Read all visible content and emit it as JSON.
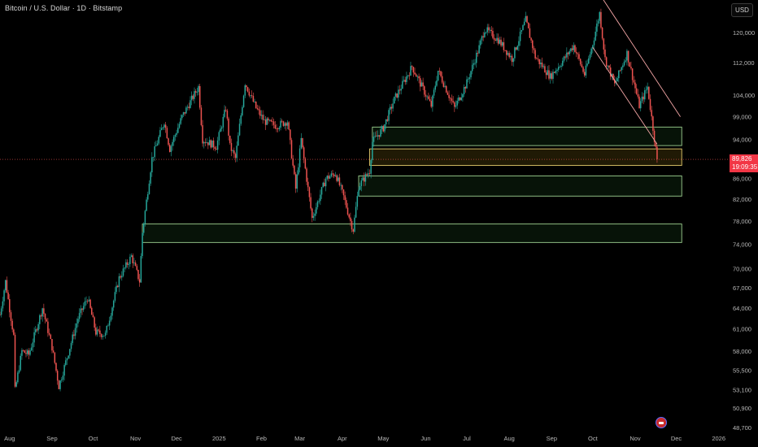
{
  "header": {
    "title": "Bitcoin / U.S. Dollar · 1D · Bitstamp"
  },
  "currency_button": "USD",
  "last_price": {
    "value": "89,826",
    "countdown": "19:09:35"
  },
  "colors": {
    "up": "#26a69a",
    "down": "#ef5350",
    "zone_fill": "#0f2a12",
    "zone_border": "#9ccf8f",
    "active_zone_fill": "#3a2f0a",
    "active_zone_border": "#e2c96a",
    "trendline": "#f4a6a6",
    "price_tag": "#f23645"
  },
  "icons": {
    "event": "flag-event-icon"
  },
  "chart_data": {
    "type": "candlestick",
    "x_axis": {
      "labels": [
        "Aug",
        "Sep",
        "Oct",
        "Nov",
        "Dec",
        "2025",
        "Feb",
        "Mar",
        "Apr",
        "May",
        "Jun",
        "Jul",
        "Aug",
        "Sep",
        "Oct",
        "Nov",
        "Dec",
        "2026"
      ]
    },
    "y_axis": {
      "scale": "log",
      "tick_labels": [
        "120,000",
        "112,000",
        "104,000",
        "99,000",
        "94,000",
        "86,000",
        "82,000",
        "78,000",
        "74,000",
        "70,000",
        "67,000",
        "64,000",
        "61,000",
        "58,000",
        "55,500",
        "53,100",
        "50,900",
        "48,700"
      ],
      "range": [
        48000,
        133000
      ]
    },
    "path": [
      [
        "2024-07-25",
        63000
      ],
      [
        "2024-07-29",
        68000
      ],
      [
        "2024-08-04",
        60000
      ],
      [
        "2024-08-05",
        53000
      ],
      [
        "2024-08-10",
        58000
      ],
      [
        "2024-08-15",
        57500
      ],
      [
        "2024-08-25",
        64000
      ],
      [
        "2024-09-01",
        58500
      ],
      [
        "2024-09-06",
        53500
      ],
      [
        "2024-09-20",
        62500
      ],
      [
        "2024-09-27",
        65500
      ],
      [
        "2024-10-03",
        60500
      ],
      [
        "2024-10-10",
        60200
      ],
      [
        "2024-10-20",
        68500
      ],
      [
        "2024-10-29",
        72000
      ],
      [
        "2024-11-04",
        68000
      ],
      [
        "2024-11-06",
        76000
      ],
      [
        "2024-11-13",
        90000
      ],
      [
        "2024-11-22",
        98000
      ],
      [
        "2024-11-26",
        92000
      ],
      [
        "2024-12-05",
        99000
      ],
      [
        "2024-12-17",
        106000
      ],
      [
        "2024-12-20",
        94000
      ],
      [
        "2024-12-30",
        92500
      ],
      [
        "2025-01-06",
        101000
      ],
      [
        "2025-01-09",
        92500
      ],
      [
        "2025-01-13",
        90000
      ],
      [
        "2025-01-20",
        107000
      ],
      [
        "2025-01-28",
        101000
      ],
      [
        "2025-02-03",
        98000
      ],
      [
        "2025-02-12",
        97000
      ],
      [
        "2025-02-20",
        98000
      ],
      [
        "2025-02-26",
        84000
      ],
      [
        "2025-03-02",
        94000
      ],
      [
        "2025-03-10",
        78500
      ],
      [
        "2025-03-20",
        86000
      ],
      [
        "2025-03-27",
        87000
      ],
      [
        "2025-04-02",
        82500
      ],
      [
        "2025-04-07",
        78000
      ],
      [
        "2025-04-09",
        76500
      ],
      [
        "2025-04-13",
        84500
      ],
      [
        "2025-04-21",
        87500
      ],
      [
        "2025-04-23",
        93500
      ],
      [
        "2025-05-01",
        96500
      ],
      [
        "2025-05-09",
        103000
      ],
      [
        "2025-05-22",
        111000
      ],
      [
        "2025-06-05",
        101500
      ],
      [
        "2025-06-10",
        110000
      ],
      [
        "2025-06-22",
        101000
      ],
      [
        "2025-07-01",
        107000
      ],
      [
        "2025-07-10",
        116000
      ],
      [
        "2025-07-14",
        121000
      ],
      [
        "2025-07-24",
        118000
      ],
      [
        "2025-08-03",
        113000
      ],
      [
        "2025-08-13",
        123500
      ],
      [
        "2025-08-20",
        113500
      ],
      [
        "2025-08-31",
        108500
      ],
      [
        "2025-09-08",
        112000
      ],
      [
        "2025-09-17",
        116500
      ],
      [
        "2025-09-25",
        109000
      ],
      [
        "2025-10-01",
        117000
      ],
      [
        "2025-10-06",
        125500
      ],
      [
        "2025-10-10",
        113000
      ],
      [
        "2025-10-17",
        106500
      ],
      [
        "2025-10-26",
        114500
      ],
      [
        "2025-11-04",
        101500
      ],
      [
        "2025-11-10",
        106000
      ],
      [
        "2025-11-14",
        96500
      ],
      [
        "2025-11-17",
        89826
      ]
    ],
    "zones": [
      {
        "low": 92700,
        "high": 96700,
        "from": "2025-04-23",
        "to": "2025-12-05"
      },
      {
        "low": 88600,
        "high": 92000,
        "from": "2025-04-21",
        "to": "2025-12-05",
        "active": true
      },
      {
        "low": 82600,
        "high": 86500,
        "from": "2025-04-13",
        "to": "2025-12-05"
      },
      {
        "low": 74300,
        "high": 77500,
        "from": "2024-11-06",
        "to": "2025-12-05"
      }
    ],
    "trendlines": [
      {
        "x1": "2025-10-06",
        "y1": 131000,
        "x2": "2025-12-04",
        "y2": 99000
      },
      {
        "x1": "2025-10-01",
        "y1": 116000,
        "x2": "2025-11-17",
        "y2": 93000
      }
    ]
  }
}
